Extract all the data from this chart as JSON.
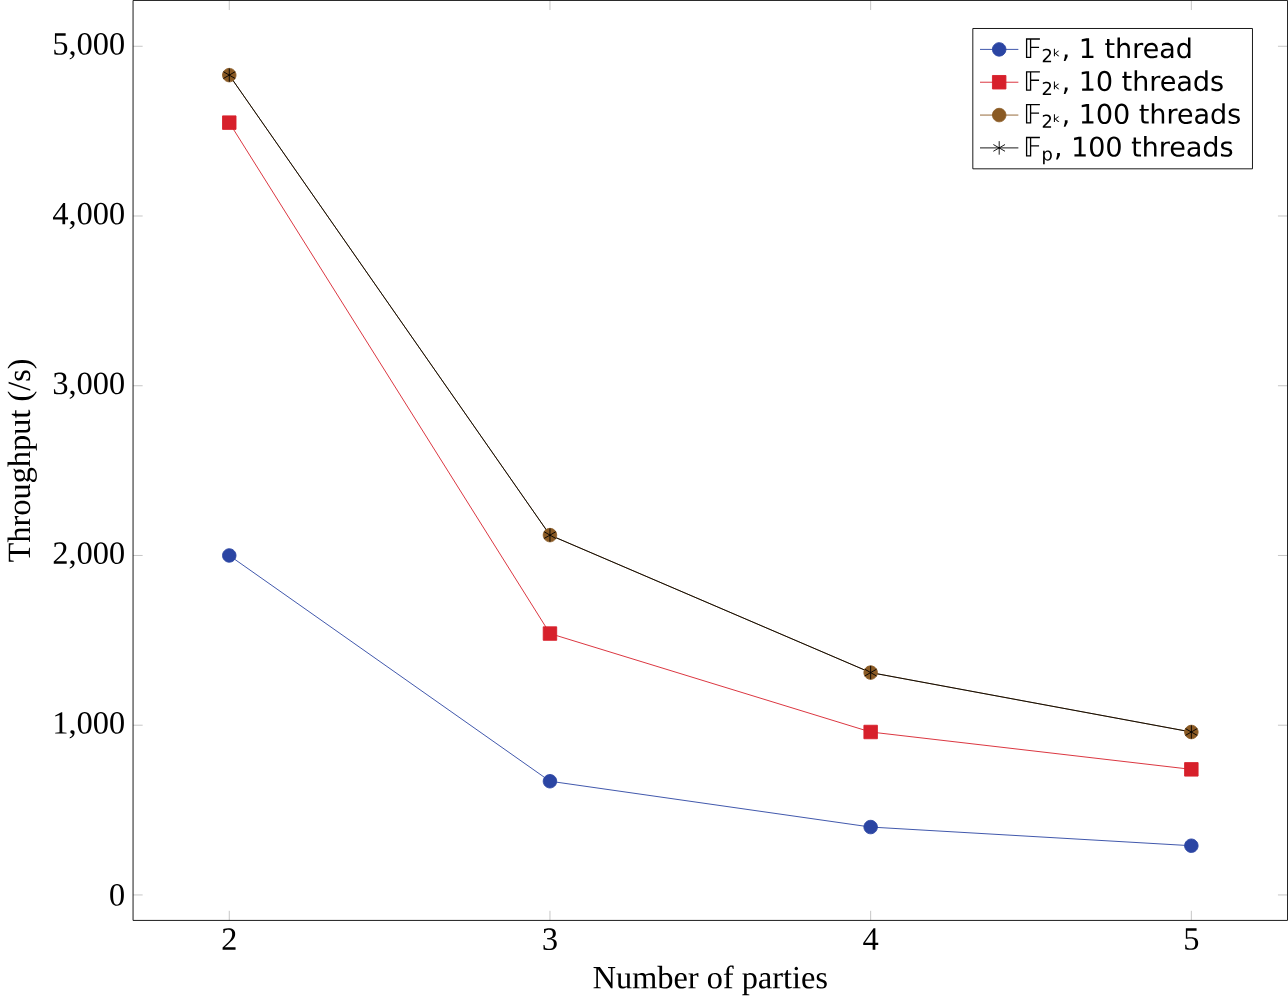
{
  "chart_data": {
    "type": "line",
    "xlabel": "Number of parties",
    "ylabel": "Throughput (/s)",
    "x": [
      2,
      3,
      4,
      5
    ],
    "series": [
      {
        "name": "𝔽$_{2ᵏ}$, 1 thread",
        "color": "#2b45a3",
        "marker": "circle",
        "values": [
          2000,
          670,
          400,
          290
        ]
      },
      {
        "name": "𝔽$_{2ᵏ}$, 10 threads",
        "color": "#d7202b",
        "marker": "square",
        "values": [
          4550,
          1540,
          960,
          740
        ]
      },
      {
        "name": "𝔽$_{2ᵏ}$, 100 threads",
        "color": "#8a5a24",
        "marker": "circle",
        "values": [
          4830,
          2120,
          1310,
          960
        ]
      },
      {
        "name": "𝔽$_{p}$, 100 threads",
        "color": "#000000",
        "marker": "cross",
        "values": [
          4830,
          2120,
          1310,
          960
        ]
      }
    ],
    "xlim": [
      1.7,
      5.3
    ],
    "ylim": [
      -150,
      5270
    ],
    "xticks": [
      2,
      3,
      4,
      5
    ],
    "yticks": [
      0,
      {
        "value": 1000,
        "label": "1,000"
      },
      {
        "value": 2000,
        "label": "2,000"
      },
      {
        "value": 3000,
        "label": "3,000"
      },
      {
        "value": 4000,
        "label": "4,000"
      },
      {
        "value": 5000,
        "label": "5,000"
      }
    ],
    "legend": "top right",
    "grid": false,
    "line_style": "solid"
  }
}
